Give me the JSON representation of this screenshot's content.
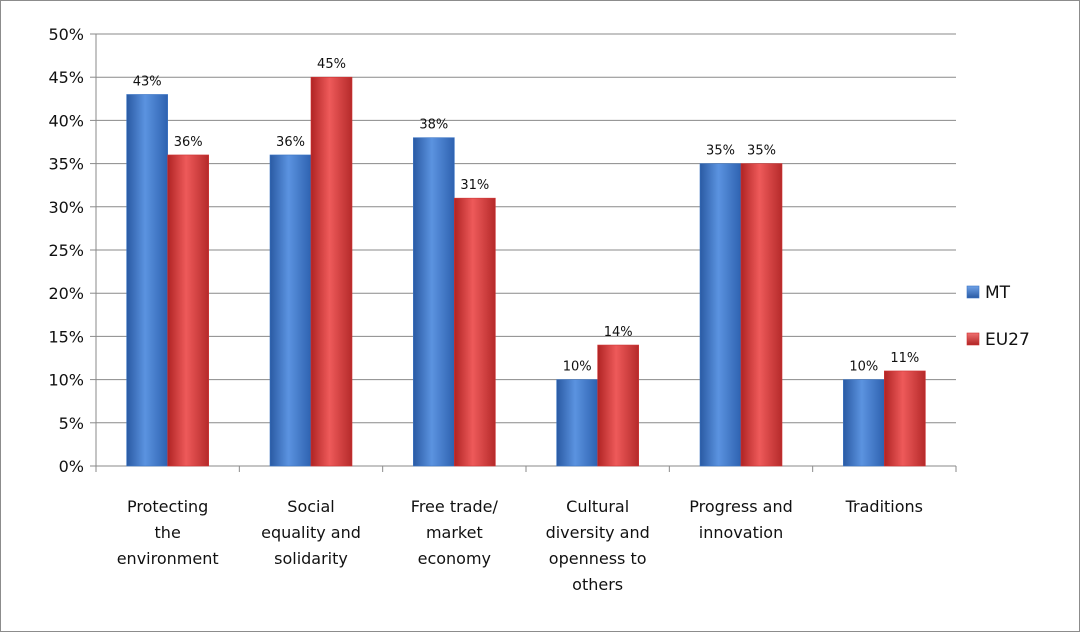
{
  "chart_data": {
    "type": "bar",
    "categories": [
      [
        "Protecting",
        "the",
        "environment"
      ],
      [
        "Social",
        "equality and",
        "solidarity"
      ],
      [
        "Free trade/",
        "market",
        "economy"
      ],
      [
        "Cultural",
        "diversity and",
        "openness to",
        "others"
      ],
      [
        "Progress and",
        "innovation"
      ],
      [
        "Traditions"
      ]
    ],
    "series": [
      {
        "name": "MT",
        "values": [
          43,
          36,
          38,
          10,
          35,
          10
        ],
        "labels": [
          "43%",
          "36%",
          "38%",
          "10%",
          "35%",
          "10%"
        ],
        "color": "#3a74c4"
      },
      {
        "name": "EU27",
        "values": [
          36,
          45,
          31,
          14,
          35,
          11
        ],
        "labels": [
          "36%",
          "45%",
          "31%",
          "14%",
          "35%",
          "11%"
        ],
        "color": "#cf3232"
      }
    ],
    "ylim": [
      0,
      50
    ],
    "yticks": [
      "0%",
      "5%",
      "10%",
      "15%",
      "20%",
      "25%",
      "30%",
      "35%",
      "40%",
      "45%",
      "50%"
    ],
    "grid": true,
    "legend": "right"
  }
}
